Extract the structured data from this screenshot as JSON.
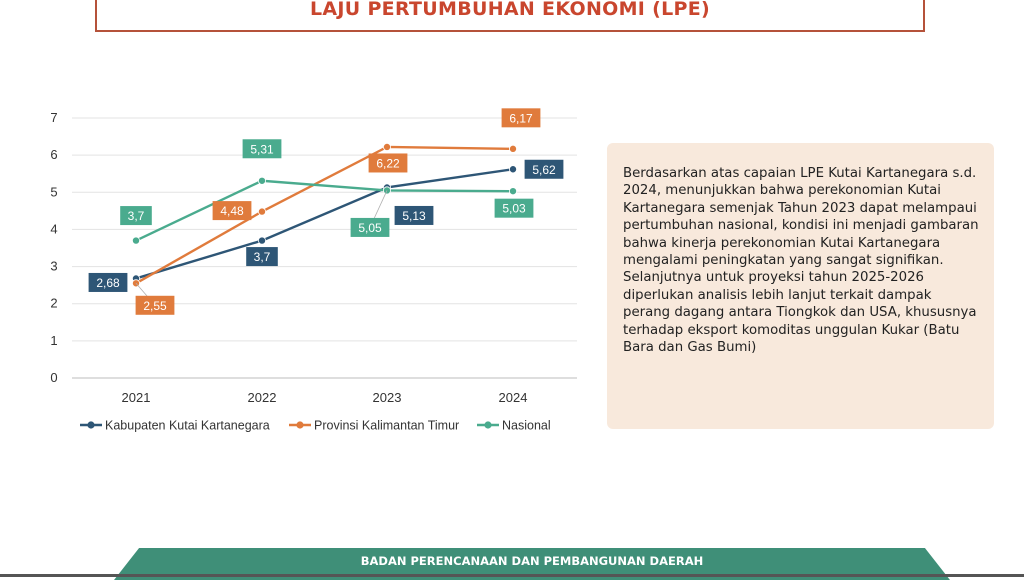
{
  "page": {
    "title": "LAJU PERTUMBUHAN EKONOMI (LPE)",
    "footer": "BADAN PERENCANAAN DAN PEMBANGUNAN DAERAH",
    "description": "Berdasarkan atas capaian LPE Kutai Kartanegara s.d. 2024, menunjukkan bahwa perekonomian Kutai Kartanegara semenjak Tahun 2023 dapat melampaui pertumbuhan nasional, kondisi ini menjadi gambaran bahwa kinerja perekonomian Kutai Kartanegara mengalami peningkatan yang sangat signifikan. Selanjutnya untuk proyeksi tahun 2025-2026 diperlukan analisis lebih lanjut terkait dampak perang dagang antara Tiongkok dan USA, khususnya terhadap eksport komoditas unggulan Kukar (Batu Bara dan Gas Bumi)"
  },
  "chart_data": {
    "type": "line",
    "categories": [
      "2021",
      "2022",
      "2023",
      "2024"
    ],
    "ylim": [
      0,
      7
    ],
    "yticks": [
      "0",
      "1",
      "2",
      "3",
      "4",
      "5",
      "6",
      "7"
    ],
    "grid": true,
    "legend_position": "bottom",
    "series": [
      {
        "name": "Kabupaten Kutai Kartanegara",
        "color": "#2e5676",
        "values": [
          2.68,
          3.7,
          5.13,
          5.62
        ],
        "labels": [
          "2,68",
          "3,7",
          "5,13",
          "5,62"
        ]
      },
      {
        "name": "Provinsi Kalimantan Timur",
        "color": "#e07b3c",
        "values": [
          2.55,
          4.48,
          6.22,
          6.17
        ],
        "labels": [
          "2,55",
          "4,48",
          "6,22",
          "6,17"
        ]
      },
      {
        "name": "Nasional",
        "color": "#4aab8e",
        "values": [
          3.7,
          5.31,
          5.05,
          5.03
        ],
        "labels": [
          "3,7",
          "5,31",
          "5,05",
          "5,03"
        ]
      }
    ]
  }
}
